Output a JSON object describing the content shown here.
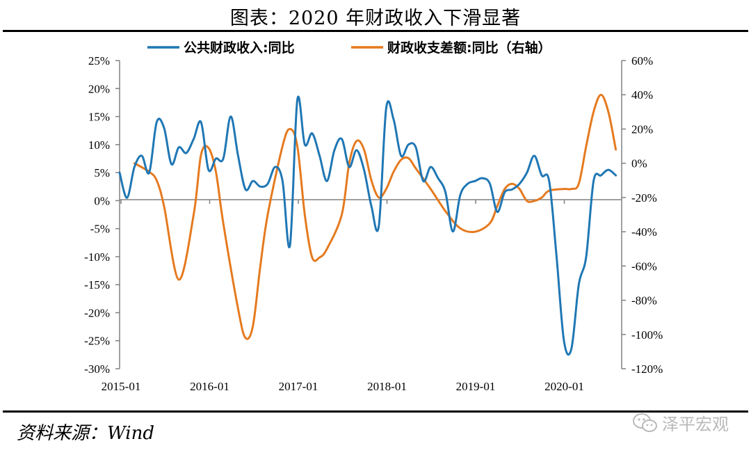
{
  "title": "图表：2020 年财政收入下滑显著",
  "source_label": "资料来源：Wind",
  "watermark_text": "泽平宏观",
  "colors": {
    "series1": "#1f77b4",
    "series2": "#e57a1f",
    "axis": "#808080"
  },
  "chart_data": {
    "type": "line",
    "title": "",
    "x_ticks": [
      "2015-01",
      "2016-01",
      "2017-01",
      "2018-01",
      "2019-01",
      "2020-01"
    ],
    "y_left": {
      "min": -30,
      "max": 25,
      "step": 5,
      "ticks": [
        "25%",
        "20%",
        "15%",
        "10%",
        "5%",
        "0%",
        "-5%",
        "-10%",
        "-15%",
        "-20%",
        "-25%",
        "-30%"
      ]
    },
    "y_right": {
      "min": -120,
      "max": 60,
      "step": 20,
      "ticks": [
        "60%",
        "40%",
        "20%",
        "0%",
        "-20%",
        "-40%",
        "-60%",
        "-80%",
        "-100%",
        "-120%"
      ]
    },
    "series": [
      {
        "name": "公共财政收入:同比",
        "axis": "left",
        "color": "#1f77b4",
        "points": [
          [
            0.0,
            5.0
          ],
          [
            0.5,
            0.5
          ],
          [
            1.0,
            6.0
          ],
          [
            1.5,
            8.0
          ],
          [
            2.0,
            5.0
          ],
          [
            2.5,
            14.0
          ],
          [
            3.0,
            13.0
          ],
          [
            3.5,
            6.5
          ],
          [
            4.0,
            9.5
          ],
          [
            4.5,
            8.5
          ],
          [
            5.0,
            11.0
          ],
          [
            5.5,
            14.0
          ],
          [
            6.0,
            5.5
          ],
          [
            6.5,
            7.5
          ],
          [
            7.0,
            7.5
          ],
          [
            7.5,
            15.0
          ],
          [
            8.0,
            8.0
          ],
          [
            8.5,
            2.0
          ],
          [
            9.0,
            3.5
          ],
          [
            9.5,
            2.5
          ],
          [
            10.0,
            3.0
          ],
          [
            10.5,
            6.0
          ],
          [
            11.0,
            3.5
          ],
          [
            11.5,
            -8.0
          ],
          [
            12.0,
            18.0
          ],
          [
            12.5,
            10.0
          ],
          [
            13.0,
            12.0
          ],
          [
            13.5,
            8.0
          ],
          [
            14.0,
            3.5
          ],
          [
            14.5,
            9.0
          ],
          [
            15.0,
            11.0
          ],
          [
            15.5,
            6.0
          ],
          [
            16.0,
            9.0
          ],
          [
            16.5,
            5.5
          ],
          [
            17.0,
            -1.0
          ],
          [
            17.5,
            -4.5
          ],
          [
            18.0,
            16.5
          ],
          [
            18.5,
            14.5
          ],
          [
            19.0,
            8.0
          ],
          [
            19.5,
            10.0
          ],
          [
            20.0,
            9.5
          ],
          [
            20.5,
            3.5
          ],
          [
            21.0,
            6.0
          ],
          [
            21.5,
            4.0
          ],
          [
            22.0,
            1.5
          ],
          [
            22.5,
            -5.5
          ],
          [
            23.0,
            1.0
          ],
          [
            23.5,
            3.0
          ],
          [
            24.0,
            3.5
          ],
          [
            24.5,
            4.0
          ],
          [
            25.0,
            3.0
          ],
          [
            25.5,
            -2.0
          ],
          [
            26.0,
            1.5
          ],
          [
            26.5,
            2.0
          ],
          [
            27.0,
            3.0
          ],
          [
            27.5,
            5.0
          ],
          [
            28.0,
            8.0
          ],
          [
            28.5,
            4.5
          ],
          [
            29.0,
            3.5
          ],
          [
            29.5,
            -10.0
          ],
          [
            30.0,
            -25.0
          ],
          [
            30.5,
            -26.5
          ],
          [
            31.0,
            -15.0
          ],
          [
            31.5,
            -10.0
          ],
          [
            32.0,
            3.5
          ],
          [
            32.5,
            4.5
          ],
          [
            33.0,
            5.5
          ],
          [
            33.5,
            4.5
          ]
        ]
      },
      {
        "name": "财政收支差额:同比（右轴）",
        "axis": "right",
        "color": "#e57a1f",
        "points": [
          [
            1.0,
            0.0
          ],
          [
            2.0,
            -5.0
          ],
          [
            2.5,
            -10.0
          ],
          [
            3.0,
            -25.0
          ],
          [
            4.0,
            -68.0
          ],
          [
            5.0,
            -30.0
          ],
          [
            5.5,
            5.0
          ],
          [
            6.0,
            9.0
          ],
          [
            6.5,
            -5.0
          ],
          [
            7.0,
            -35.0
          ],
          [
            8.0,
            -85.0
          ],
          [
            8.5,
            -102.0
          ],
          [
            9.0,
            -95.0
          ],
          [
            9.5,
            -60.0
          ],
          [
            10.0,
            -30.0
          ],
          [
            11.0,
            10.0
          ],
          [
            11.5,
            20.0
          ],
          [
            12.0,
            10.0
          ],
          [
            12.5,
            -30.0
          ],
          [
            13.0,
            -55.0
          ],
          [
            13.5,
            -55.0
          ],
          [
            14.0,
            -50.0
          ],
          [
            15.0,
            -30.0
          ],
          [
            15.5,
            0.0
          ],
          [
            16.0,
            13.0
          ],
          [
            16.5,
            8.0
          ],
          [
            17.0,
            -10.0
          ],
          [
            17.5,
            -20.0
          ],
          [
            18.0,
            -15.0
          ],
          [
            18.5,
            -5.0
          ],
          [
            19.0,
            2.0
          ],
          [
            19.5,
            3.0
          ],
          [
            20.0,
            -3.0
          ],
          [
            21.0,
            -15.0
          ],
          [
            22.0,
            -28.0
          ],
          [
            23.0,
            -38.0
          ],
          [
            24.0,
            -40.0
          ],
          [
            25.0,
            -35.0
          ],
          [
            25.5,
            -25.0
          ],
          [
            26.0,
            -15.0
          ],
          [
            26.5,
            -12.0
          ],
          [
            27.0,
            -15.0
          ],
          [
            27.5,
            -22.0
          ],
          [
            28.0,
            -22.0
          ],
          [
            28.5,
            -20.0
          ],
          [
            29.0,
            -16.0
          ],
          [
            30.0,
            -15.0
          ],
          [
            30.5,
            -15.0
          ],
          [
            31.0,
            -12.0
          ],
          [
            31.5,
            10.0
          ],
          [
            32.0,
            30.0
          ],
          [
            32.5,
            40.0
          ],
          [
            33.0,
            30.0
          ],
          [
            33.5,
            8.0
          ]
        ]
      }
    ]
  }
}
